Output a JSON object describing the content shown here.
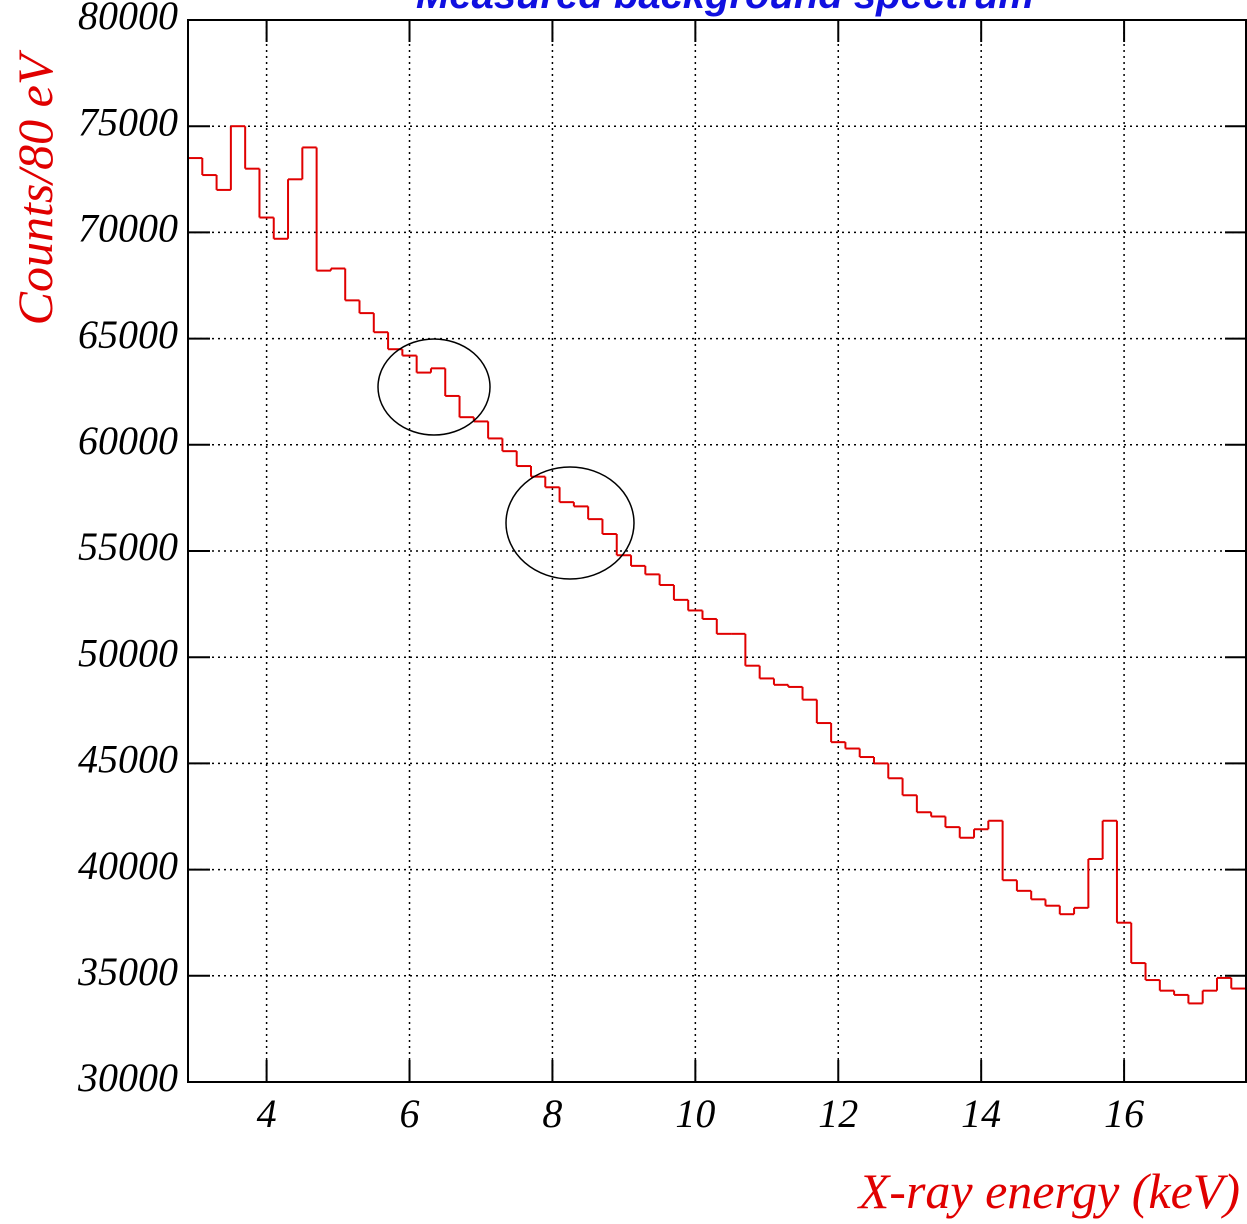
{
  "chart_data": {
    "type": "histogram",
    "title": "Measured background spectrum",
    "xlabel": "X-ray energy (keV)",
    "ylabel": "Counts/80 eV",
    "color": "#e00000",
    "grid": true,
    "xlim": [
      2.9,
      17.72
    ],
    "ylim": [
      30000,
      80000
    ],
    "xticks": [
      4,
      6,
      8,
      10,
      12,
      14,
      16
    ],
    "yticks": [
      30000,
      35000,
      40000,
      45000,
      50000,
      55000,
      60000,
      65000,
      70000,
      75000,
      80000
    ],
    "bins": [
      2.9,
      3.1,
      3.3,
      3.5,
      3.7,
      3.9,
      4.1,
      4.3,
      4.5,
      4.7,
      4.9,
      5.1,
      5.3,
      5.5,
      5.7,
      5.9,
      6.1,
      6.3,
      6.5,
      6.7,
      6.9,
      7.1,
      7.3,
      7.5,
      7.7,
      7.9,
      8.1,
      8.3,
      8.5,
      8.7,
      8.9,
      9.1,
      9.3,
      9.5,
      9.7,
      9.9,
      10.1,
      10.3,
      10.5,
      10.7,
      10.9,
      11.1,
      11.3,
      11.5,
      11.7,
      11.9,
      12.1,
      12.3,
      12.5,
      12.7,
      12.9,
      13.1,
      13.3,
      13.5,
      13.7,
      13.9,
      14.1,
      14.3,
      14.5,
      14.7,
      14.9,
      15.1,
      15.3,
      15.5,
      15.7,
      15.9,
      16.1,
      16.3,
      16.5,
      16.7,
      16.9,
      17.1,
      17.3,
      17.5,
      17.7
    ],
    "counts": [
      73500,
      72700,
      72000,
      75000,
      73000,
      70700,
      69700,
      72500,
      74000,
      68200,
      68300,
      66800,
      66200,
      65300,
      64500,
      64200,
      63400,
      63600,
      62300,
      61300,
      61100,
      60300,
      59700,
      59000,
      58500,
      58000,
      57300,
      57100,
      56500,
      55800,
      54800,
      54300,
      53900,
      53400,
      52700,
      52200,
      51800,
      51100,
      51100,
      49600,
      49000,
      48700,
      48600,
      48000,
      46900,
      46000,
      45700,
      45300,
      45000,
      44300,
      43500,
      42700,
      42500,
      42000,
      41500,
      41900,
      42300,
      39500,
      39000,
      38600,
      38300,
      37900,
      38200,
      40500,
      42300,
      37500,
      35600,
      34800,
      34300,
      34100,
      33700,
      34300,
      34900,
      34400
    ]
  }
}
